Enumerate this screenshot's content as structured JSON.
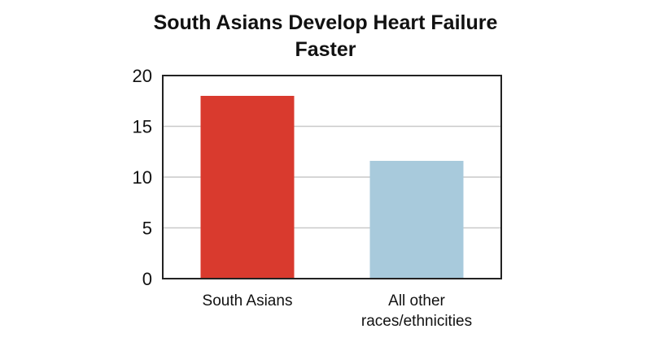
{
  "chart_data": {
    "type": "bar",
    "title_lines": [
      "South Asians Develop Heart Failure",
      "Faster"
    ],
    "categories": [
      [
        "South Asians"
      ],
      [
        "All other",
        "races/ethnicities"
      ]
    ],
    "values": [
      18,
      11.6
    ],
    "ylim": [
      0,
      20
    ],
    "yticks": [
      0,
      5,
      10,
      15,
      20
    ],
    "xlabel": "",
    "ylabel": "",
    "grid": true,
    "colors": [
      "#d93a2e",
      "#a8cadc"
    ]
  }
}
